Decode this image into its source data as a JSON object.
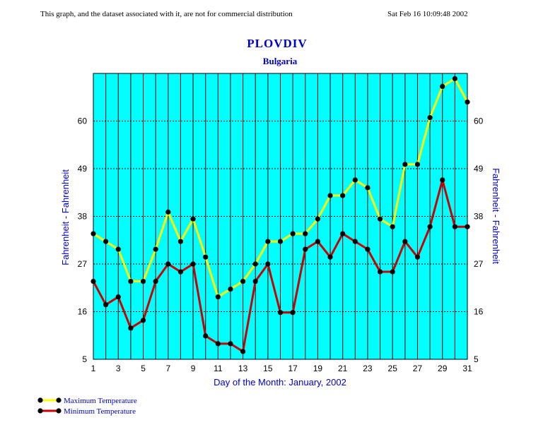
{
  "header": {
    "disclaimer": "This graph, and the dataset associated with it, are not for commercial distribution",
    "timestamp": "Sat Feb 16 10:09:48 2002"
  },
  "chart_data": {
    "type": "line",
    "title": "PLOVDIV",
    "subtitle": "Bulgaria",
    "xlabel": "Day of the Month:  January, 2002",
    "ylabel_left": "Fahrenheit - Fahrenheit",
    "ylabel_right": "Fahrenheit - Fahrenheit",
    "xlim": [
      1,
      31
    ],
    "ylim": [
      5,
      71
    ],
    "yticks": [
      5,
      16,
      27,
      38,
      49,
      60
    ],
    "xticks": [
      1,
      3,
      5,
      7,
      9,
      11,
      13,
      15,
      17,
      19,
      21,
      23,
      25,
      27,
      29,
      31
    ],
    "x": [
      1,
      2,
      3,
      4,
      5,
      6,
      7,
      8,
      9,
      10,
      11,
      12,
      13,
      14,
      15,
      16,
      17,
      18,
      19,
      20,
      21,
      22,
      23,
      24,
      25,
      26,
      27,
      28,
      29,
      30,
      31
    ],
    "grid": true,
    "background": "#00ffff",
    "series": [
      {
        "name": "Maximum Temperature",
        "color": "#ffff00",
        "values": [
          34,
          32.2,
          30.4,
          23,
          23,
          30.4,
          39,
          32.2,
          37.4,
          28.6,
          19.4,
          21.2,
          23,
          27,
          32.2,
          32.2,
          34,
          34,
          37.4,
          42.8,
          42.8,
          46.4,
          44.6,
          37.4,
          35.6,
          50,
          50,
          60.8,
          68,
          69.8,
          64.4
        ]
      },
      {
        "name": "Minimum Temperature",
        "color": "#cc0000",
        "values": [
          23,
          17.6,
          19.4,
          12.2,
          14,
          23,
          27,
          25.2,
          27,
          10.4,
          8.6,
          8.6,
          6.8,
          23,
          27,
          15.8,
          15.8,
          30.4,
          32.2,
          28.6,
          34,
          32.2,
          30.4,
          25.2,
          25.2,
          32.2,
          28.6,
          35.6,
          46.4,
          35.6,
          35.6
        ]
      }
    ],
    "legend_position": "bottom-left"
  }
}
